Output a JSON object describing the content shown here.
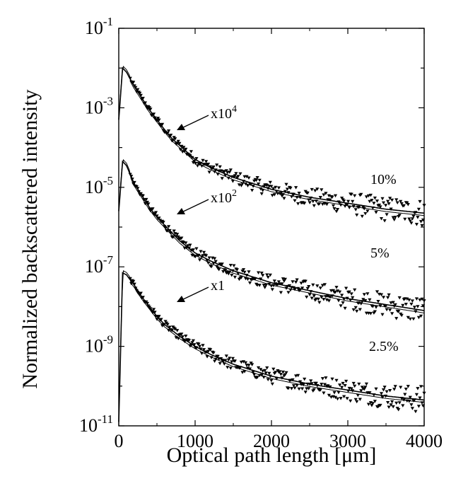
{
  "chart_data": {
    "type": "scatter",
    "title": "",
    "xlabel": "Optical path length [μm]",
    "ylabel": "Normalized backscattered intensity",
    "xlim": [
      0,
      4000
    ],
    "ylim_exponents": [
      -11,
      -1
    ],
    "y_scale": "log",
    "grid": false,
    "x_ticks": [
      "0",
      "1000",
      "2000",
      "3000",
      "4000"
    ],
    "y_ticks": [
      {
        "base": "10",
        "exp": "-11"
      },
      {
        "base": "10",
        "exp": "-9"
      },
      {
        "base": "10",
        "exp": "-7"
      },
      {
        "base": "10",
        "exp": "-5"
      },
      {
        "base": "10",
        "exp": "-3"
      },
      {
        "base": "10",
        "exp": "-1"
      }
    ],
    "series": [
      {
        "label": "10%",
        "multiplier_base": "x10",
        "multiplier_exp": "4",
        "x": [
          0,
          50,
          100,
          200,
          300,
          400,
          500,
          600,
          700,
          800,
          1000,
          1200,
          1500,
          2000,
          2500,
          3000,
          3500,
          4000
        ],
        "y_log10": [
          -3.3,
          -2.0,
          -2.1,
          -2.45,
          -2.75,
          -3.05,
          -3.3,
          -3.55,
          -3.78,
          -3.95,
          -4.3,
          -4.5,
          -4.75,
          -5.05,
          -5.25,
          -5.4,
          -5.55,
          -5.65
        ]
      },
      {
        "label": "5%",
        "multiplier_base": "x10",
        "multiplier_exp": "2",
        "x": [
          0,
          50,
          100,
          200,
          300,
          400,
          500,
          600,
          700,
          800,
          1000,
          1200,
          1500,
          2000,
          2500,
          3000,
          3500,
          4000
        ],
        "y_log10": [
          -5.6,
          -4.35,
          -4.45,
          -4.9,
          -5.2,
          -5.5,
          -5.75,
          -5.95,
          -6.15,
          -6.35,
          -6.65,
          -6.85,
          -7.1,
          -7.4,
          -7.6,
          -7.8,
          -7.95,
          -8.1
        ]
      },
      {
        "label": "2.5%",
        "multiplier_base": "x1",
        "multiplier_exp": "",
        "x": [
          0,
          50,
          100,
          200,
          300,
          400,
          500,
          600,
          700,
          800,
          1000,
          1200,
          1500,
          2000,
          2500,
          3000,
          3500,
          4000
        ],
        "y_log10": [
          -10.9,
          -7.15,
          -7.2,
          -7.45,
          -7.75,
          -8.0,
          -8.25,
          -8.45,
          -8.6,
          -8.75,
          -9.0,
          -9.2,
          -9.45,
          -9.75,
          -9.95,
          -10.1,
          -10.25,
          -10.35
        ]
      }
    ]
  }
}
